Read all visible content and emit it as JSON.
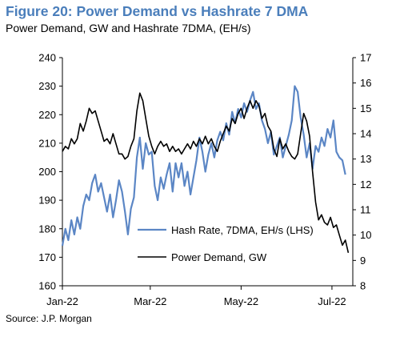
{
  "title": "Figure 20: Power Demand vs Hashrate 7 DMA",
  "subtitle": "Power Demand, GW and Hashrate 7DMA, (EH/s)",
  "source": "Source: J.P. Morgan",
  "chart_data": {
    "type": "line",
    "grid": false,
    "legend_position": "center-right",
    "x_tick_labels": [
      "Jan-22",
      "Mar-22",
      "May-22",
      "Jul-22"
    ],
    "x_ticks": [
      "2022-01-01",
      "2022-03-01",
      "2022-05-01",
      "2022-07-01"
    ],
    "x_range": [
      "2022-01-01",
      "2022-07-15"
    ],
    "y_left": {
      "range": [
        160,
        240
      ],
      "ticks": [
        160,
        170,
        180,
        190,
        200,
        210,
        220,
        230,
        240
      ]
    },
    "y_right": {
      "range": [
        8,
        17
      ],
      "ticks": [
        8,
        9,
        10,
        11,
        12,
        13,
        14,
        15,
        16,
        17
      ]
    },
    "series": [
      {
        "name": "Hash Rate, 7DMA, EH/s (LHS)",
        "axis": "left",
        "color": "#5b86c5",
        "points": [
          [
            "2022-01-01",
            174
          ],
          [
            "2022-01-03",
            180
          ],
          [
            "2022-01-05",
            176
          ],
          [
            "2022-01-07",
            183
          ],
          [
            "2022-01-09",
            178
          ],
          [
            "2022-01-11",
            184
          ],
          [
            "2022-01-13",
            180
          ],
          [
            "2022-01-15",
            188
          ],
          [
            "2022-01-17",
            192
          ],
          [
            "2022-01-19",
            190
          ],
          [
            "2022-01-21",
            196
          ],
          [
            "2022-01-23",
            199
          ],
          [
            "2022-01-25",
            193
          ],
          [
            "2022-01-27",
            196
          ],
          [
            "2022-01-29",
            191
          ],
          [
            "2022-01-31",
            186
          ],
          [
            "2022-02-02",
            192
          ],
          [
            "2022-02-04",
            184
          ],
          [
            "2022-02-06",
            190
          ],
          [
            "2022-02-08",
            197
          ],
          [
            "2022-02-10",
            193
          ],
          [
            "2022-02-12",
            186
          ],
          [
            "2022-02-14",
            178
          ],
          [
            "2022-02-16",
            187
          ],
          [
            "2022-02-18",
            191
          ],
          [
            "2022-02-20",
            205
          ],
          [
            "2022-02-22",
            212
          ],
          [
            "2022-02-24",
            201
          ],
          [
            "2022-02-26",
            210
          ],
          [
            "2022-02-28",
            206
          ],
          [
            "2022-03-02",
            207
          ],
          [
            "2022-03-04",
            195
          ],
          [
            "2022-03-06",
            190
          ],
          [
            "2022-03-08",
            198
          ],
          [
            "2022-03-10",
            194
          ],
          [
            "2022-03-12",
            199
          ],
          [
            "2022-03-14",
            203
          ],
          [
            "2022-03-16",
            193
          ],
          [
            "2022-03-18",
            203
          ],
          [
            "2022-03-20",
            198
          ],
          [
            "2022-03-22",
            203
          ],
          [
            "2022-03-24",
            195
          ],
          [
            "2022-03-26",
            200
          ],
          [
            "2022-03-28",
            192
          ],
          [
            "2022-03-30",
            198
          ],
          [
            "2022-04-01",
            204
          ],
          [
            "2022-04-03",
            212
          ],
          [
            "2022-04-05",
            207
          ],
          [
            "2022-04-07",
            200
          ],
          [
            "2022-04-09",
            206
          ],
          [
            "2022-04-11",
            210
          ],
          [
            "2022-04-13",
            205
          ],
          [
            "2022-04-15",
            211
          ],
          [
            "2022-04-17",
            214
          ],
          [
            "2022-04-19",
            211
          ],
          [
            "2022-04-21",
            217
          ],
          [
            "2022-04-23",
            213
          ],
          [
            "2022-04-25",
            221
          ],
          [
            "2022-04-27",
            217
          ],
          [
            "2022-04-29",
            222
          ],
          [
            "2022-05-01",
            219
          ],
          [
            "2022-05-03",
            224
          ],
          [
            "2022-05-05",
            221
          ],
          [
            "2022-05-07",
            225
          ],
          [
            "2022-05-09",
            228
          ],
          [
            "2022-05-11",
            222
          ],
          [
            "2022-05-13",
            224
          ],
          [
            "2022-05-15",
            218
          ],
          [
            "2022-05-17",
            215
          ],
          [
            "2022-05-19",
            210
          ],
          [
            "2022-05-21",
            214
          ],
          [
            "2022-05-23",
            206
          ],
          [
            "2022-05-25",
            209
          ],
          [
            "2022-05-27",
            212
          ],
          [
            "2022-05-29",
            205
          ],
          [
            "2022-05-31",
            209
          ],
          [
            "2022-06-02",
            213
          ],
          [
            "2022-06-04",
            218
          ],
          [
            "2022-06-06",
            230
          ],
          [
            "2022-06-08",
            228
          ],
          [
            "2022-06-10",
            219
          ],
          [
            "2022-06-12",
            213
          ],
          [
            "2022-06-14",
            205
          ],
          [
            "2022-06-16",
            210
          ],
          [
            "2022-06-18",
            201
          ],
          [
            "2022-06-20",
            209
          ],
          [
            "2022-06-22",
            207
          ],
          [
            "2022-06-24",
            212
          ],
          [
            "2022-06-26",
            209
          ],
          [
            "2022-06-28",
            215
          ],
          [
            "2022-06-30",
            212
          ],
          [
            "2022-07-02",
            218
          ],
          [
            "2022-07-04",
            207
          ],
          [
            "2022-07-06",
            205
          ],
          [
            "2022-07-08",
            204
          ],
          [
            "2022-07-10",
            199
          ]
        ]
      },
      {
        "name": "Power Demand, GW",
        "axis": "right",
        "color": "#000000",
        "points": [
          [
            "2022-01-01",
            13.3
          ],
          [
            "2022-01-03",
            13.5
          ],
          [
            "2022-01-05",
            13.4
          ],
          [
            "2022-01-07",
            13.8
          ],
          [
            "2022-01-09",
            13.6
          ],
          [
            "2022-01-11",
            13.8
          ],
          [
            "2022-01-13",
            14.4
          ],
          [
            "2022-01-15",
            14.1
          ],
          [
            "2022-01-17",
            14.5
          ],
          [
            "2022-01-19",
            15.0
          ],
          [
            "2022-01-21",
            14.8
          ],
          [
            "2022-01-23",
            14.9
          ],
          [
            "2022-01-25",
            14.5
          ],
          [
            "2022-01-27",
            14.1
          ],
          [
            "2022-01-29",
            13.7
          ],
          [
            "2022-01-31",
            13.8
          ],
          [
            "2022-02-02",
            13.6
          ],
          [
            "2022-02-04",
            14.0
          ],
          [
            "2022-02-06",
            13.6
          ],
          [
            "2022-02-08",
            13.2
          ],
          [
            "2022-02-10",
            13.2
          ],
          [
            "2022-02-12",
            13.0
          ],
          [
            "2022-02-14",
            13.1
          ],
          [
            "2022-02-16",
            13.5
          ],
          [
            "2022-02-18",
            13.8
          ],
          [
            "2022-02-20",
            14.9
          ],
          [
            "2022-02-22",
            15.6
          ],
          [
            "2022-02-24",
            15.3
          ],
          [
            "2022-02-26",
            14.6
          ],
          [
            "2022-02-28",
            13.9
          ],
          [
            "2022-03-02",
            13.5
          ],
          [
            "2022-03-04",
            13.2
          ],
          [
            "2022-03-06",
            13.5
          ],
          [
            "2022-03-08",
            13.7
          ],
          [
            "2022-03-10",
            13.5
          ],
          [
            "2022-03-12",
            13.6
          ],
          [
            "2022-03-14",
            13.3
          ],
          [
            "2022-03-16",
            13.5
          ],
          [
            "2022-03-18",
            13.3
          ],
          [
            "2022-03-20",
            13.4
          ],
          [
            "2022-03-22",
            13.2
          ],
          [
            "2022-03-24",
            13.4
          ],
          [
            "2022-03-26",
            13.6
          ],
          [
            "2022-03-28",
            13.4
          ],
          [
            "2022-03-30",
            13.7
          ],
          [
            "2022-04-01",
            13.5
          ],
          [
            "2022-04-03",
            13.8
          ],
          [
            "2022-04-05",
            13.6
          ],
          [
            "2022-04-07",
            13.9
          ],
          [
            "2022-04-09",
            13.6
          ],
          [
            "2022-04-11",
            13.8
          ],
          [
            "2022-04-13",
            13.5
          ],
          [
            "2022-04-15",
            13.3
          ],
          [
            "2022-04-17",
            13.7
          ],
          [
            "2022-04-19",
            14.0
          ],
          [
            "2022-04-21",
            14.3
          ],
          [
            "2022-04-23",
            14.1
          ],
          [
            "2022-04-25",
            14.6
          ],
          [
            "2022-04-27",
            14.4
          ],
          [
            "2022-04-29",
            14.8
          ],
          [
            "2022-05-01",
            15.0
          ],
          [
            "2022-05-03",
            14.6
          ],
          [
            "2022-05-05",
            15.0
          ],
          [
            "2022-05-07",
            15.3
          ],
          [
            "2022-05-09",
            15.0
          ],
          [
            "2022-05-11",
            15.3
          ],
          [
            "2022-05-13",
            15.1
          ],
          [
            "2022-05-15",
            14.6
          ],
          [
            "2022-05-17",
            14.8
          ],
          [
            "2022-05-19",
            14.3
          ],
          [
            "2022-05-21",
            14.1
          ],
          [
            "2022-05-23",
            13.4
          ],
          [
            "2022-05-25",
            13.1
          ],
          [
            "2022-05-27",
            13.8
          ],
          [
            "2022-05-29",
            13.4
          ],
          [
            "2022-05-31",
            13.6
          ],
          [
            "2022-06-02",
            13.3
          ],
          [
            "2022-06-04",
            13.1
          ],
          [
            "2022-06-06",
            13.0
          ],
          [
            "2022-06-08",
            13.2
          ],
          [
            "2022-06-10",
            14.0
          ],
          [
            "2022-06-12",
            14.8
          ],
          [
            "2022-06-14",
            14.5
          ],
          [
            "2022-06-16",
            13.9
          ],
          [
            "2022-06-18",
            12.5
          ],
          [
            "2022-06-20",
            11.3
          ],
          [
            "2022-06-22",
            10.6
          ],
          [
            "2022-06-24",
            10.8
          ],
          [
            "2022-06-26",
            10.5
          ],
          [
            "2022-06-28",
            10.4
          ],
          [
            "2022-06-30",
            10.7
          ],
          [
            "2022-07-02",
            10.3
          ],
          [
            "2022-07-04",
            10.4
          ],
          [
            "2022-07-06",
            10.0
          ],
          [
            "2022-07-08",
            9.6
          ],
          [
            "2022-07-10",
            9.8
          ],
          [
            "2022-07-12",
            9.3
          ]
        ]
      }
    ]
  }
}
